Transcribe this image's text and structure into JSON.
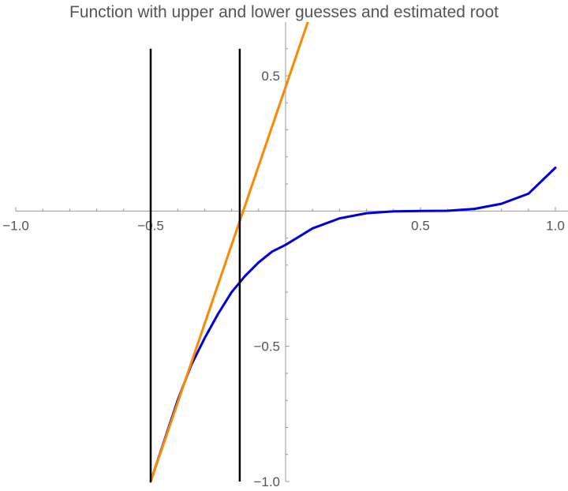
{
  "chart_data": {
    "type": "line",
    "title": "Function with upper and lower guesses and estimated root",
    "xlim": [
      -1.0,
      1.0
    ],
    "ylim": [
      -1.0,
      0.7
    ],
    "xticks": [
      {
        "value": -1.0,
        "label": "−1.0"
      },
      {
        "value": -0.5,
        "label": "−0.5"
      },
      {
        "value": 0.5,
        "label": "0.5"
      },
      {
        "value": 1.0,
        "label": "1.0"
      }
    ],
    "yticks": [
      {
        "value": 0.5,
        "label": "0.5"
      },
      {
        "value": -0.5,
        "label": "−0.5"
      },
      {
        "value": -1.0,
        "label": "−1.0"
      }
    ],
    "series": [
      {
        "kind": "curve",
        "color": "#0000dd",
        "points": [
          [
            -0.5,
            -1.0
          ],
          [
            -0.45,
            -0.85
          ],
          [
            -0.4,
            -0.7
          ],
          [
            -0.35,
            -0.57
          ],
          [
            -0.3,
            -0.47
          ],
          [
            -0.25,
            -0.38
          ],
          [
            -0.2,
            -0.3
          ],
          [
            -0.15,
            -0.24
          ],
          [
            -0.1,
            -0.19
          ],
          [
            -0.05,
            -0.15
          ],
          [
            0.0,
            -0.125
          ],
          [
            0.1,
            -0.064
          ],
          [
            0.2,
            -0.027
          ],
          [
            0.3,
            -0.008
          ],
          [
            0.4,
            -0.001
          ],
          [
            0.5,
            0.0
          ],
          [
            0.6,
            0.001
          ],
          [
            0.7,
            0.008
          ],
          [
            0.8,
            0.027
          ],
          [
            0.9,
            0.064
          ],
          [
            1.0,
            0.16
          ]
        ]
      },
      {
        "kind": "secant-line",
        "color": "#ff8800",
        "points": [
          [
            -0.5,
            -1.0
          ],
          [
            0.1,
            0.75
          ]
        ]
      },
      {
        "kind": "lower-guess",
        "color": "#000000",
        "points": [
          [
            -0.5,
            -1.0
          ],
          [
            -0.5,
            0.6
          ]
        ]
      },
      {
        "kind": "upper-guess",
        "color": "#000000",
        "points": [
          [
            -0.17,
            -1.0
          ],
          [
            -0.17,
            0.6
          ]
        ]
      }
    ]
  }
}
